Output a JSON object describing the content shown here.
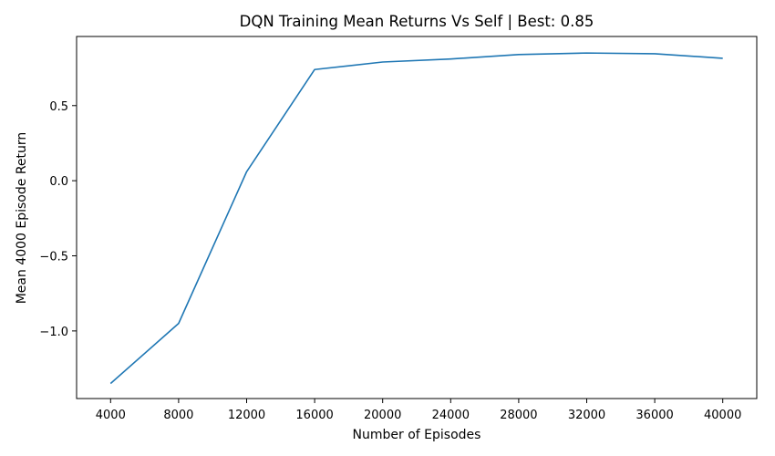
{
  "chart_data": {
    "type": "line",
    "title": "DQN Training Mean Returns Vs Self | Best:  0.85",
    "xlabel": "Number of Episodes",
    "ylabel": "Mean 4000 Episode Return",
    "xlim": [
      2000,
      42000
    ],
    "ylim": [
      -1.45,
      0.96
    ],
    "x_ticks": [
      4000,
      8000,
      12000,
      16000,
      20000,
      24000,
      28000,
      32000,
      36000,
      40000
    ],
    "x_tick_labels": [
      "4000",
      "8000",
      "12000",
      "16000",
      "20000",
      "24000",
      "28000",
      "32000",
      "36000",
      "40000"
    ],
    "y_ticks": [
      -1.0,
      -0.5,
      0.0,
      0.5
    ],
    "y_tick_labels": [
      "−1.0",
      "−0.5",
      "0.0",
      "0.5"
    ],
    "grid": false,
    "legend": "none",
    "series": [
      {
        "color": "#1f77b4",
        "x": [
          4000,
          8000,
          12000,
          16000,
          20000,
          24000,
          28000,
          32000,
          36000,
          40000
        ],
        "y": [
          -1.35,
          -0.95,
          0.06,
          0.74,
          0.79,
          0.81,
          0.84,
          0.85,
          0.845,
          0.815
        ]
      }
    ]
  }
}
